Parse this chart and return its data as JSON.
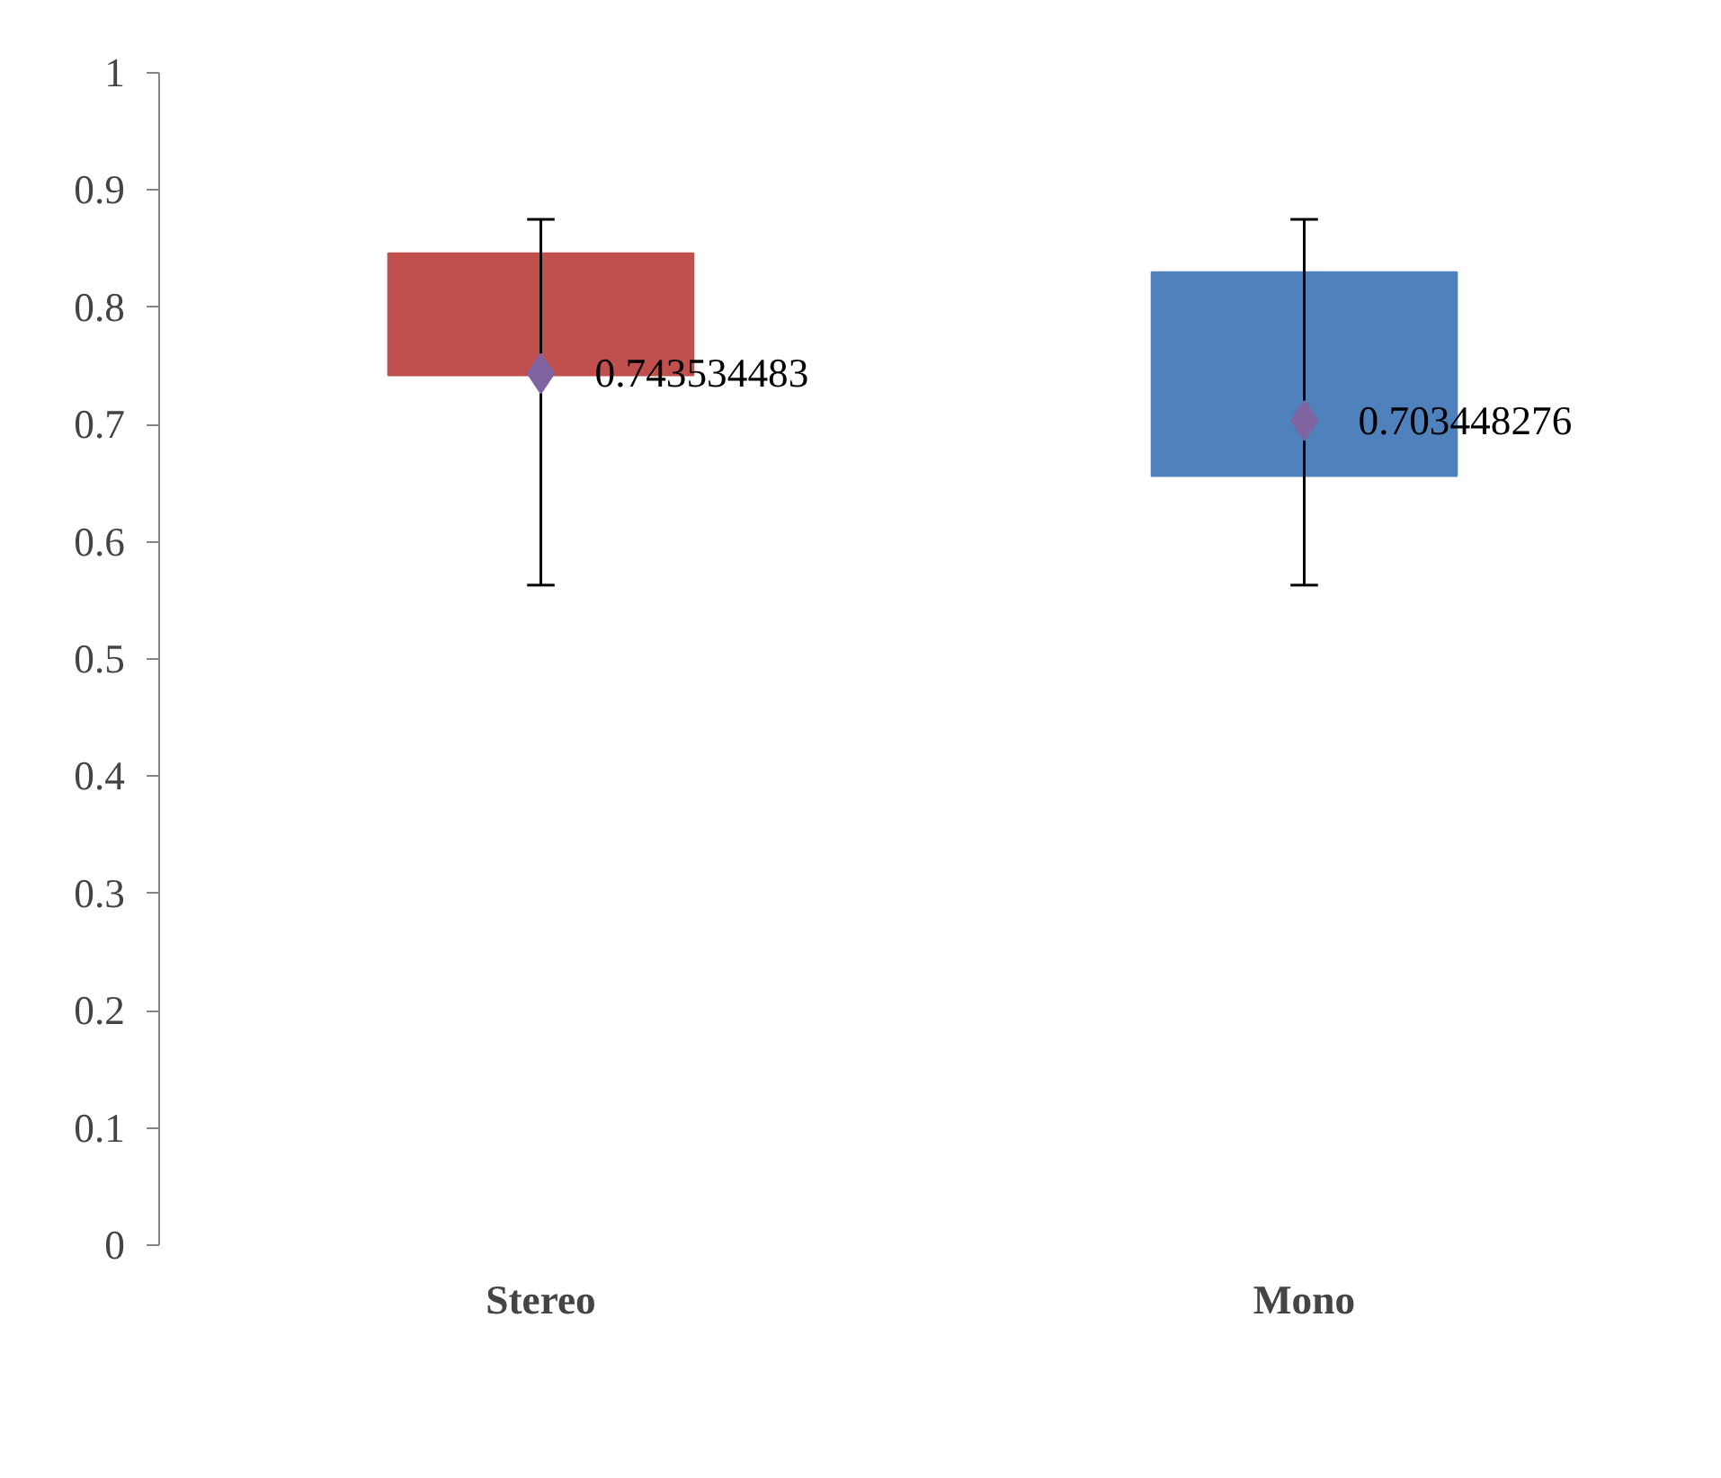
{
  "chart_data": {
    "type": "bar",
    "categories": [
      "Stereo",
      "Mono"
    ],
    "base": [
      0.742,
      0.656
    ],
    "values": [
      0.104,
      0.174
    ],
    "colors": [
      "#c0504d",
      "#4f81bd"
    ],
    "errors": [
      [
        0.563,
        0.875
      ],
      [
        0.563,
        0.875
      ]
    ],
    "ylim": [
      0,
      1
    ],
    "yticks": [
      0,
      0.1,
      0.2,
      0.3,
      0.4,
      0.5,
      0.6,
      0.7,
      0.8,
      0.9,
      1
    ],
    "grid": false,
    "series": [
      {
        "type": "scatter",
        "x": [
          "Stereo",
          "Mono"
        ],
        "values": [
          0.743534483,
          0.703448276
        ],
        "color": "#8064a2",
        "marker": "diamond",
        "data_labels": true
      }
    ]
  }
}
